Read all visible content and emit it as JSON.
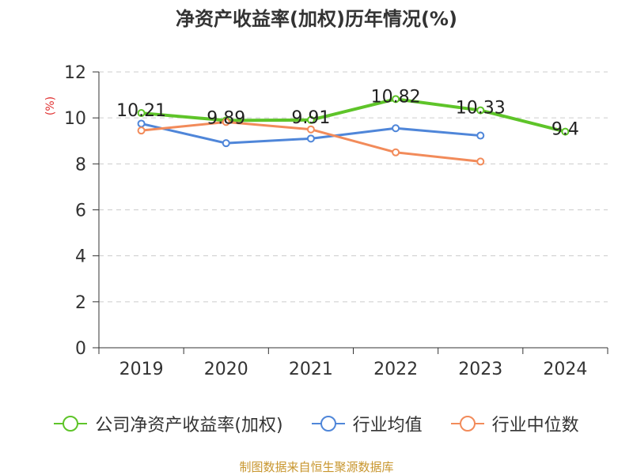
{
  "chart_data": {
    "type": "line",
    "title": "净资产收益率(加权)历年情况(%)",
    "ylabel": "(%)",
    "xlabel": "",
    "categories": [
      "2019",
      "2020",
      "2021",
      "2022",
      "2023",
      "2024"
    ],
    "ylim": [
      0,
      12
    ],
    "yticks": [
      0,
      2,
      4,
      6,
      8,
      10,
      12
    ],
    "grid": true,
    "legend_position": "bottom",
    "series": [
      {
        "name": "公司净资产收益率(加权)",
        "color": "#5ec429",
        "values": [
          10.21,
          9.89,
          9.91,
          10.82,
          10.33,
          9.4
        ],
        "labels": [
          "10.21",
          "9.89",
          "9.91",
          "10.82",
          "10.33",
          "9.4"
        ]
      },
      {
        "name": "行业均值",
        "color": "#4f86d9",
        "values": [
          9.75,
          8.9,
          9.1,
          9.55,
          9.23,
          null
        ]
      },
      {
        "name": "行业中位数",
        "color": "#f28b5a",
        "values": [
          9.45,
          9.82,
          9.5,
          8.5,
          8.1,
          null
        ]
      }
    ],
    "source": "制图数据来自恒生聚源数据库"
  },
  "colors": {
    "unit": "#e03030",
    "source": "#c8962e",
    "axis": "#333333",
    "grid": "#cccccc"
  }
}
